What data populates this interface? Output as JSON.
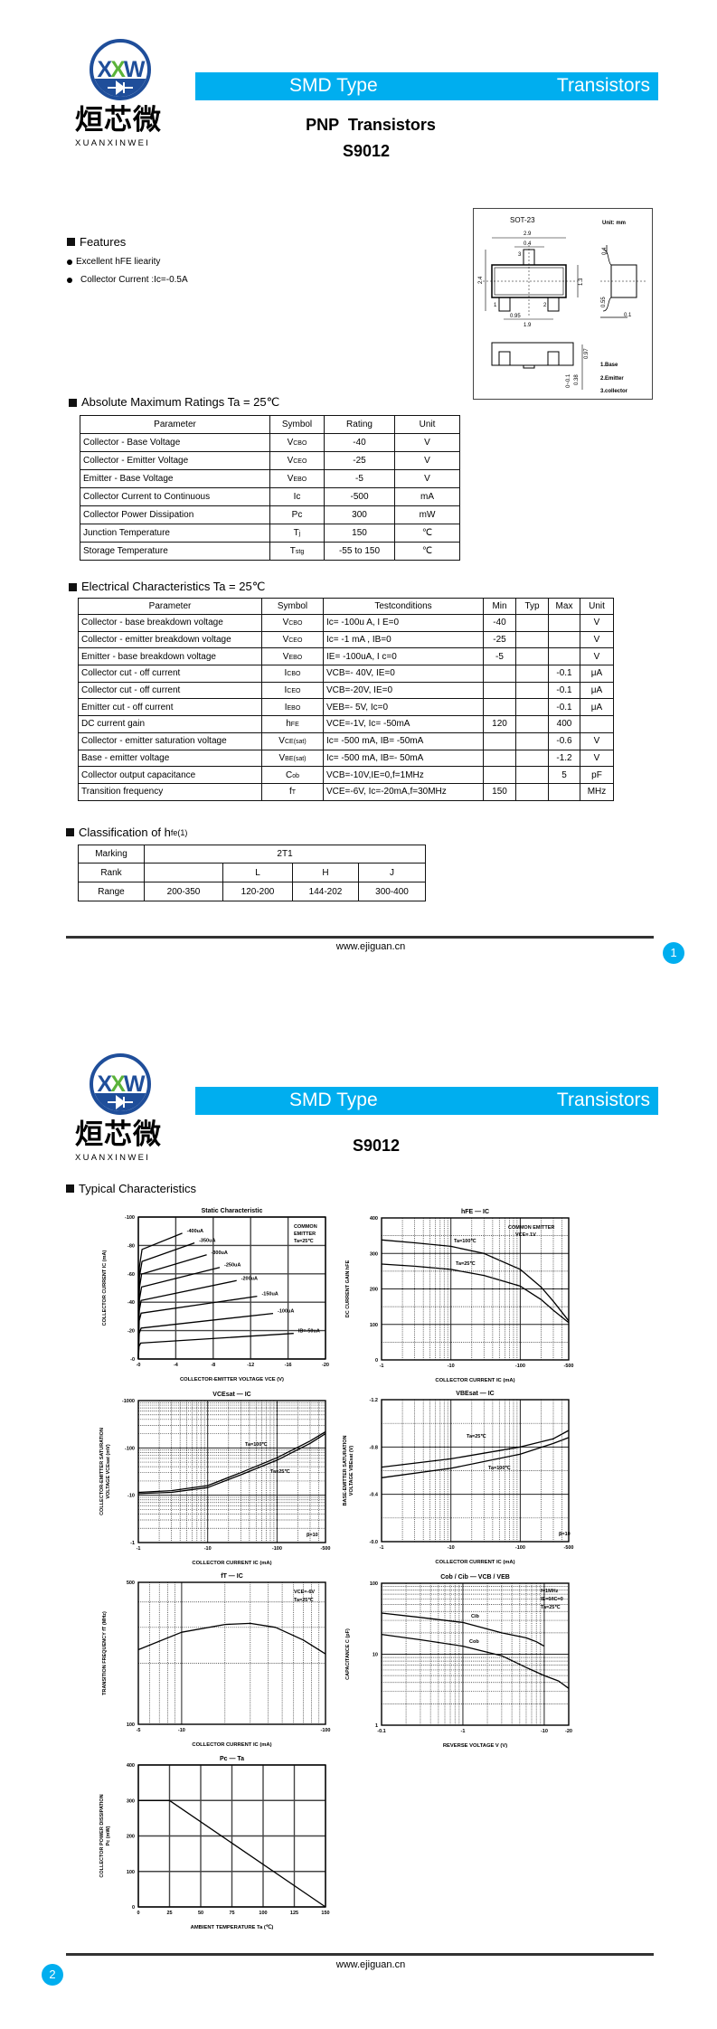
{
  "colors": {
    "banner": "#00AEEF",
    "logo_blue": "#1F4E9A",
    "logo_green": "#5BB33A",
    "badge": "#00AEEF"
  },
  "logo": {
    "mark_left": "X",
    "mark_mid": "X",
    "mark_right": "W",
    "cn": "烜芯微",
    "en": "XUANXINWEI"
  },
  "page1": {
    "banner": {
      "left": "SMD Type",
      "right": "Transistors"
    },
    "title": "PNP  Transistors",
    "part": "S9012",
    "features": {
      "heading": "Features",
      "items": [
        "Excellent hFE liearity",
        "Collector Current :Ic=-0.5A"
      ]
    },
    "package": {
      "name": "SOT-23",
      "unit": "Unit: mm",
      "dims": [
        "2.9",
        "0.4",
        "2.4",
        "1.3",
        "0.95",
        "1.9",
        "0.4",
        "0.55",
        "0.1",
        "0.97",
        "0.38",
        "0~0.1"
      ],
      "pins": [
        "1",
        "2",
        "3"
      ],
      "legend": [
        "1.Base",
        "2.Emitter",
        "3.collector"
      ]
    },
    "abs": {
      "heading": "Absolute Maximum Ratings Ta = 25℃",
      "headers": [
        "Parameter",
        "Symbol",
        "Rating",
        "Unit"
      ],
      "rows": [
        {
          "param": "Collector - Base Voltage",
          "sym": [
            "V",
            "CBO"
          ],
          "rating": "-40",
          "unit": "V"
        },
        {
          "param": "Collector - Emitter Voltage",
          "sym": [
            "V",
            "CEO"
          ],
          "rating": "-25",
          "unit": "V"
        },
        {
          "param": "Emitter - Base Voltage",
          "sym": [
            "V",
            "EBO"
          ],
          "rating": "-5",
          "unit": "V"
        },
        {
          "param": "Collector Current to Continuous",
          "sym": [
            "Ic",
            ""
          ],
          "rating": "-500",
          "unit": "mA"
        },
        {
          "param": "Collector Power Dissipation",
          "sym": [
            "Pc",
            ""
          ],
          "rating": "300",
          "unit": "mW"
        },
        {
          "param": "Junction Temperature",
          "sym": [
            "T",
            "j"
          ],
          "rating": "150",
          "unit": "℃"
        },
        {
          "param": "Storage Temperature",
          "sym": [
            "T",
            "stg"
          ],
          "rating": "-55 to 150",
          "unit": "℃"
        }
      ]
    },
    "elec": {
      "heading": "Electrical Characteristics Ta = 25℃",
      "headers": [
        "Parameter",
        "Symbol",
        "Testconditions",
        "Min",
        "Typ",
        "Max",
        "Unit"
      ],
      "rows": [
        {
          "param": "Collector - base breakdown voltage",
          "sym": [
            "V",
            "CBO"
          ],
          "cond": "Ic= -100u A, I E=0",
          "min": "-40",
          "typ": "",
          "max": "",
          "unit": "V"
        },
        {
          "param": "Collector - emitter breakdown voltage",
          "sym": [
            "V",
            "CEO"
          ],
          "cond": "Ic= -1 mA , IB=0",
          "min": "-25",
          "typ": "",
          "max": "",
          "unit": "V"
        },
        {
          "param": "Emitter - base breakdown voltage",
          "sym": [
            "V",
            "EBO"
          ],
          "cond": "IE= -100uA, I c=0",
          "min": "-5",
          "typ": "",
          "max": "",
          "unit": "V"
        },
        {
          "param": "Collector cut - off current",
          "sym": [
            "I",
            "CBO"
          ],
          "cond": "VCB=- 40V, IE=0",
          "min": "",
          "typ": "",
          "max": "-0.1",
          "unit": "μA"
        },
        {
          "param": "Collector cut - off current",
          "sym": [
            "I",
            "CEO"
          ],
          "cond": "VCB=-20V, IE=0",
          "min": "",
          "typ": "",
          "max": "-0.1",
          "unit": "μA"
        },
        {
          "param": "Emitter cut - off current",
          "sym": [
            "I",
            "EBO"
          ],
          "cond": "VEB=- 5V, Ic=0",
          "min": "",
          "typ": "",
          "max": "-0.1",
          "unit": "μA"
        },
        {
          "param": "DC current gain",
          "sym": [
            "h",
            "FE"
          ],
          "cond": "VCE=-1V, Ic= -50mA",
          "min": "120",
          "typ": "",
          "max": "400",
          "unit": ""
        },
        {
          "param": "Collector - emitter saturation voltage",
          "sym": [
            "V",
            "CE(sat)"
          ],
          "cond": "Ic= -500 mA, IB= -50mA",
          "min": "",
          "typ": "",
          "max": "-0.6",
          "unit": "V"
        },
        {
          "param": "Base - emitter voltage",
          "sym": [
            "V",
            "BE(sat)"
          ],
          "cond": "Ic= -500 mA, IB=- 50mA",
          "min": "",
          "typ": "",
          "max": "-1.2",
          "unit": "V"
        },
        {
          "param": "Collector output capacitance",
          "sym": [
            "C",
            "ob"
          ],
          "cond": "VCB=-10V,IE=0,f=1MHz",
          "min": "",
          "typ": "",
          "max": "5",
          "unit": "pF"
        },
        {
          "param": "Transition frequency",
          "sym": [
            "f",
            "T"
          ],
          "cond": "VCE=-6V, Ic=-20mA,f=30MHz",
          "min": "150",
          "typ": "",
          "max": "",
          "unit": "MHz"
        }
      ]
    },
    "classification": {
      "heading_main": "Classification of h",
      "heading_sub": "fe(1)",
      "marking_label": "Marking",
      "marking_value": "2T1",
      "rank_label": "Rank",
      "ranks": [
        "",
        "L",
        "H",
        "J"
      ],
      "range_label": "Range",
      "ranges": [
        "200-350",
        "120-200",
        "144-202",
        "300-400"
      ]
    },
    "footer": {
      "url": "www.ejiguan.cn",
      "page": "1"
    }
  },
  "page2": {
    "banner": {
      "left": "SMD Type",
      "right": "Transistors"
    },
    "part": "S9012",
    "heading": "Typical Characteristics",
    "footer": {
      "url": "www.ejiguan.cn",
      "page": "2"
    }
  },
  "chart_data": [
    {
      "type": "line",
      "title": "Static Characteristic",
      "xlabel": "COLLECTOR-EMITTER VOLTAGE VCE (V)",
      "ylabel": "COLLECTOR CURRENT IC (mA)",
      "xscale": "linear",
      "xlim": [
        0,
        -20
      ],
      "xticks": [
        0,
        -4,
        -8,
        -12,
        -16,
        -20
      ],
      "xtick_labels": [
        "-0",
        "-4",
        "-8",
        "-12",
        "-16",
        "-20"
      ],
      "yscale": "linear",
      "ylim": [
        0,
        -100
      ],
      "yticks": [
        0,
        -20,
        -40,
        -60,
        -80,
        -100
      ],
      "ytick_labels": [
        "-0",
        "-20",
        "-40",
        "-60",
        "-80",
        "-100"
      ],
      "grid": true,
      "annotations": [
        "COMMON",
        "EMITTER",
        "Ta=25℃"
      ],
      "series": [
        {
          "name": "-400uA",
          "points": [
            [
              0,
              0
            ],
            [
              -0.12,
              -65
            ],
            [
              -0.4,
              -77.2
            ],
            [
              -4.7,
              -88.6
            ]
          ]
        },
        {
          "name": "-350uA",
          "points": [
            [
              0,
              0
            ],
            [
              -0.12,
              -58
            ],
            [
              -0.4,
              -68.7
            ],
            [
              -6,
              -81.8
            ]
          ]
        },
        {
          "name": "-300uA",
          "points": [
            [
              0,
              0
            ],
            [
              -0.12,
              -50
            ],
            [
              -0.35,
              -59.8
            ],
            [
              -7.3,
              -73.4
            ]
          ]
        },
        {
          "name": "-250uA",
          "points": [
            [
              0,
              0
            ],
            [
              -0.12,
              -42
            ],
            [
              -0.35,
              -50.7
            ],
            [
              -8.7,
              -64.5
            ]
          ]
        },
        {
          "name": "-200uA",
          "points": [
            [
              0,
              0
            ],
            [
              -0.1,
              -34
            ],
            [
              -0.3,
              -41.2
            ],
            [
              -10.5,
              -55.2
            ]
          ]
        },
        {
          "name": "-150uA",
          "points": [
            [
              0,
              0
            ],
            [
              -0.1,
              -27
            ],
            [
              -0.3,
              -32.3
            ],
            [
              -12.7,
              -44.2
            ]
          ]
        },
        {
          "name": "-100uA",
          "points": [
            [
              0,
              0
            ],
            [
              -0.1,
              -18
            ],
            [
              -0.3,
              -21.8
            ],
            [
              -14.4,
              -32.1
            ]
          ]
        },
        {
          "name": "IB=-50uA",
          "points": [
            [
              0,
              0
            ],
            [
              -0.08,
              -9
            ],
            [
              -0.25,
              -11.2
            ],
            [
              -16.6,
              -18
            ]
          ]
        }
      ]
    },
    {
      "type": "line",
      "title": "hFE — IC",
      "xlabel": "COLLECTOR CURRENT IC (mA)",
      "ylabel": "DC CURRENT GAIN hFE",
      "xscale": "log",
      "xlim": [
        -1,
        -500
      ],
      "xticks": [
        -1,
        -10,
        -100,
        -500
      ],
      "xtick_labels": [
        "-1",
        "-10",
        "-100",
        "-500"
      ],
      "yscale": "linear",
      "ylim": [
        0,
        400
      ],
      "yticks": [
        0,
        100,
        200,
        300,
        400
      ],
      "ytick_labels": [
        "0",
        "100",
        "200",
        "300",
        "400"
      ],
      "y_minor_grid": [
        50,
        150,
        250,
        350
      ],
      "grid": true,
      "annotations": [
        "COMMON EMITTER",
        "VCE= 1V"
      ],
      "series": [
        {
          "name": "Ta=100℃",
          "points": [
            [
              -1,
              338
            ],
            [
              -3,
              330
            ],
            [
              -10,
              320
            ],
            [
              -30,
              300
            ],
            [
              -100,
              255
            ],
            [
              -200,
              205
            ],
            [
              -300,
              165
            ],
            [
              -500,
              110
            ]
          ]
        },
        {
          "name": "Ta=25℃",
          "points": [
            [
              -1,
              270
            ],
            [
              -3,
              264
            ],
            [
              -10,
              255
            ],
            [
              -30,
              238
            ],
            [
              -100,
              208
            ],
            [
              -200,
              170
            ],
            [
              -300,
              140
            ],
            [
              -500,
              105
            ]
          ]
        }
      ]
    },
    {
      "type": "line",
      "title": "VCEsat — IC",
      "xlabel": "COLLECTOR CURRENT IC (mA)",
      "ylabel": "COLLECTOR-EMITTER SATURATION\nVOLTAGE VCEsat (mV)",
      "xscale": "log",
      "xlim": [
        -1,
        -500
      ],
      "xticks": [
        -1,
        -10,
        -100,
        -500
      ],
      "xtick_labels": [
        "-1",
        "-10",
        "-100",
        "-500"
      ],
      "yscale": "log",
      "ylim": [
        -1,
        -1000
      ],
      "yticks": [
        -1,
        -10,
        -100,
        -1000
      ],
      "ytick_labels": [
        "-1",
        "-10",
        "-100",
        "-1000"
      ],
      "grid": true,
      "annotations": [
        "β=10"
      ],
      "series": [
        {
          "name": "Ta=100℃",
          "points": [
            [
              -1,
              -11.5
            ],
            [
              -3,
              -12.5
            ],
            [
              -10,
              -16
            ],
            [
              -30,
              -30
            ],
            [
              -100,
              -62
            ],
            [
              -300,
              -140
            ],
            [
              -500,
              -220
            ]
          ]
        },
        {
          "name": "Ta=25℃",
          "points": [
            [
              -1,
              -10.8
            ],
            [
              -3,
              -11.5
            ],
            [
              -10,
              -14.5
            ],
            [
              -30,
              -27
            ],
            [
              -100,
              -55
            ],
            [
              -300,
              -125
            ],
            [
              -500,
              -200
            ]
          ]
        }
      ]
    },
    {
      "type": "line",
      "title": "VBEsat — IC",
      "xlabel": "COLLECTOR CURRENT IC (mA)",
      "ylabel": "BASE-EMITTER SATURATION\nVOLTAGE VBEsat (V)",
      "xscale": "log",
      "xlim": [
        -1,
        -500
      ],
      "xticks": [
        -1,
        -10,
        -100,
        -500
      ],
      "xtick_labels": [
        "-1",
        "-10",
        "-100",
        "-500"
      ],
      "yscale": "linear",
      "ylim": [
        0,
        -1.2
      ],
      "yticks": [
        0,
        -0.4,
        -0.8,
        -1.2
      ],
      "ytick_labels": [
        "-0.0",
        "-0.4",
        "-0.8",
        "-1.2"
      ],
      "y_minor_grid": [
        -0.2,
        -0.6,
        -1.0
      ],
      "grid": true,
      "annotations": [
        "β=10"
      ],
      "series": [
        {
          "name": "Ta=25℃",
          "points": [
            [
              -1,
              -0.63
            ],
            [
              -10,
              -0.7
            ],
            [
              -100,
              -0.8
            ],
            [
              -300,
              -0.87
            ],
            [
              -500,
              -0.94
            ]
          ]
        },
        {
          "name": "Ta=100℃",
          "points": [
            [
              -1,
              -0.54
            ],
            [
              -10,
              -0.62
            ],
            [
              -100,
              -0.74
            ],
            [
              -300,
              -0.83
            ],
            [
              -500,
              -0.88
            ]
          ]
        }
      ]
    },
    {
      "type": "line",
      "title": "fT — IC",
      "xlabel": "COLLECTOR CURRENT IC (mA)",
      "ylabel": "TRANSITION FREQUENCY fT (MHz)",
      "xscale": "log",
      "xlim": [
        -5,
        -100
      ],
      "xticks": [
        -5,
        -10,
        -100
      ],
      "xtick_labels": [
        "-5",
        "-10",
        "-100"
      ],
      "yscale": "log",
      "ylim": [
        100,
        500
      ],
      "yticks": [
        100,
        500
      ],
      "ytick_labels": [
        "100",
        "500"
      ],
      "grid": true,
      "annotations": [
        "VCE=-6V",
        "Ta=25℃"
      ],
      "series": [
        {
          "name": "",
          "points": [
            [
              -5,
              233
            ],
            [
              -10,
              284
            ],
            [
              -20,
              310
            ],
            [
              -30,
              314
            ],
            [
              -45,
              300
            ],
            [
              -70,
              260
            ],
            [
              -100,
              222
            ]
          ]
        }
      ]
    },
    {
      "type": "line",
      "title": "Cob / Cib — VCB / VEB",
      "xlabel": "REVERSE VOLTAGE V (V)",
      "ylabel": "CAPACITANCE C (pF)",
      "xscale": "log",
      "xlim": [
        -0.1,
        -20
      ],
      "xticks": [
        -0.1,
        -1,
        -10,
        -20
      ],
      "xtick_labels": [
        "-0.1",
        "-1",
        "-10",
        "-20"
      ],
      "yscale": "log",
      "ylim": [
        1,
        100
      ],
      "yticks": [
        1,
        10,
        100
      ],
      "ytick_labels": [
        "1",
        "10",
        "100"
      ],
      "grid": true,
      "annotations": [
        "f=1MHz",
        "IE=0/IC=0",
        "Ta=25℃"
      ],
      "series": [
        {
          "name": "Cib",
          "points": [
            [
              -0.1,
              38
            ],
            [
              -0.3,
              33
            ],
            [
              -1,
              28
            ],
            [
              -3,
              20
            ],
            [
              -6,
              17
            ],
            [
              -8,
              15
            ],
            [
              -10,
              13
            ]
          ]
        },
        {
          "name": "Cob",
          "points": [
            [
              -0.1,
              19
            ],
            [
              -0.3,
              16
            ],
            [
              -1,
              13
            ],
            [
              -3,
              9.5
            ],
            [
              -6,
              6.5
            ],
            [
              -10,
              5
            ],
            [
              -15,
              4.2
            ],
            [
              -20,
              3.3
            ]
          ]
        }
      ]
    },
    {
      "type": "line",
      "title": "Pc — Ta",
      "xlabel": "AMBIENT TEMPERATURE Ta (℃)",
      "ylabel": "COLLECTOR POWER DISSIPATION\nPc (mW)",
      "xscale": "linear",
      "xlim": [
        0,
        150
      ],
      "xticks": [
        0,
        25,
        50,
        75,
        100,
        125,
        150
      ],
      "xtick_labels": [
        "0",
        "25",
        "50",
        "75",
        "100",
        "125",
        "150"
      ],
      "yscale": "linear",
      "ylim": [
        0,
        400
      ],
      "yticks": [
        0,
        100,
        200,
        300,
        400
      ],
      "ytick_labels": [
        "0",
        "100",
        "200",
        "300",
        "400"
      ],
      "grid": true,
      "annotations": [],
      "series": [
        {
          "name": "",
          "points": [
            [
              0,
              300
            ],
            [
              25,
              300
            ],
            [
              150,
              0
            ]
          ]
        }
      ]
    }
  ]
}
